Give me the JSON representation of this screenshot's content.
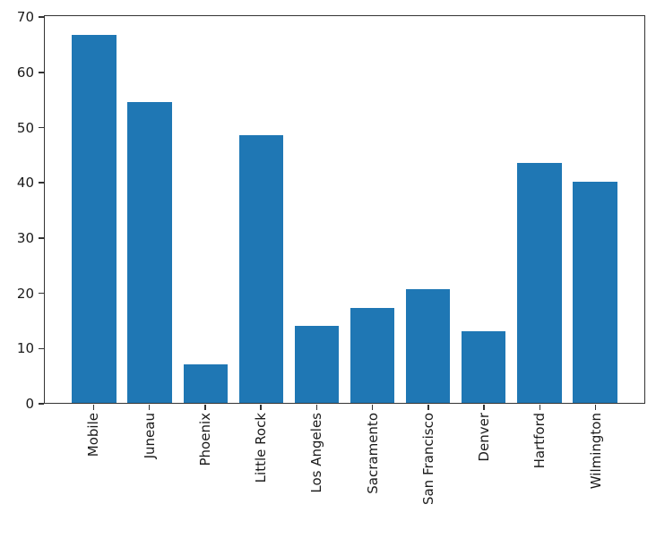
{
  "figure": {
    "background_color": "#ffffff",
    "spine_color": "#333333",
    "text_color": "#1a1a1a"
  },
  "chart_data": {
    "type": "bar",
    "title": "",
    "xlabel": "",
    "ylabel": "",
    "categories": [
      "Mobile",
      "Juneau",
      "Phoenix",
      "Little Rock",
      "Los Angeles",
      "Sacramento",
      "San Francisco",
      "Denver",
      "Hartford",
      "Wilmington"
    ],
    "values": [
      67.0,
      54.7,
      7.0,
      48.7,
      14.0,
      17.2,
      20.7,
      13.0,
      43.6,
      40.2
    ],
    "bar_color": "#1f77b4",
    "bar_width_units": 0.8,
    "xlim": [
      -0.89,
      9.89
    ],
    "ylim": [
      0,
      70.35
    ],
    "yticks": [
      0,
      10,
      20,
      30,
      40,
      50,
      60,
      70
    ],
    "xtick_rotation_deg": 90,
    "grid": false,
    "legend": null
  }
}
